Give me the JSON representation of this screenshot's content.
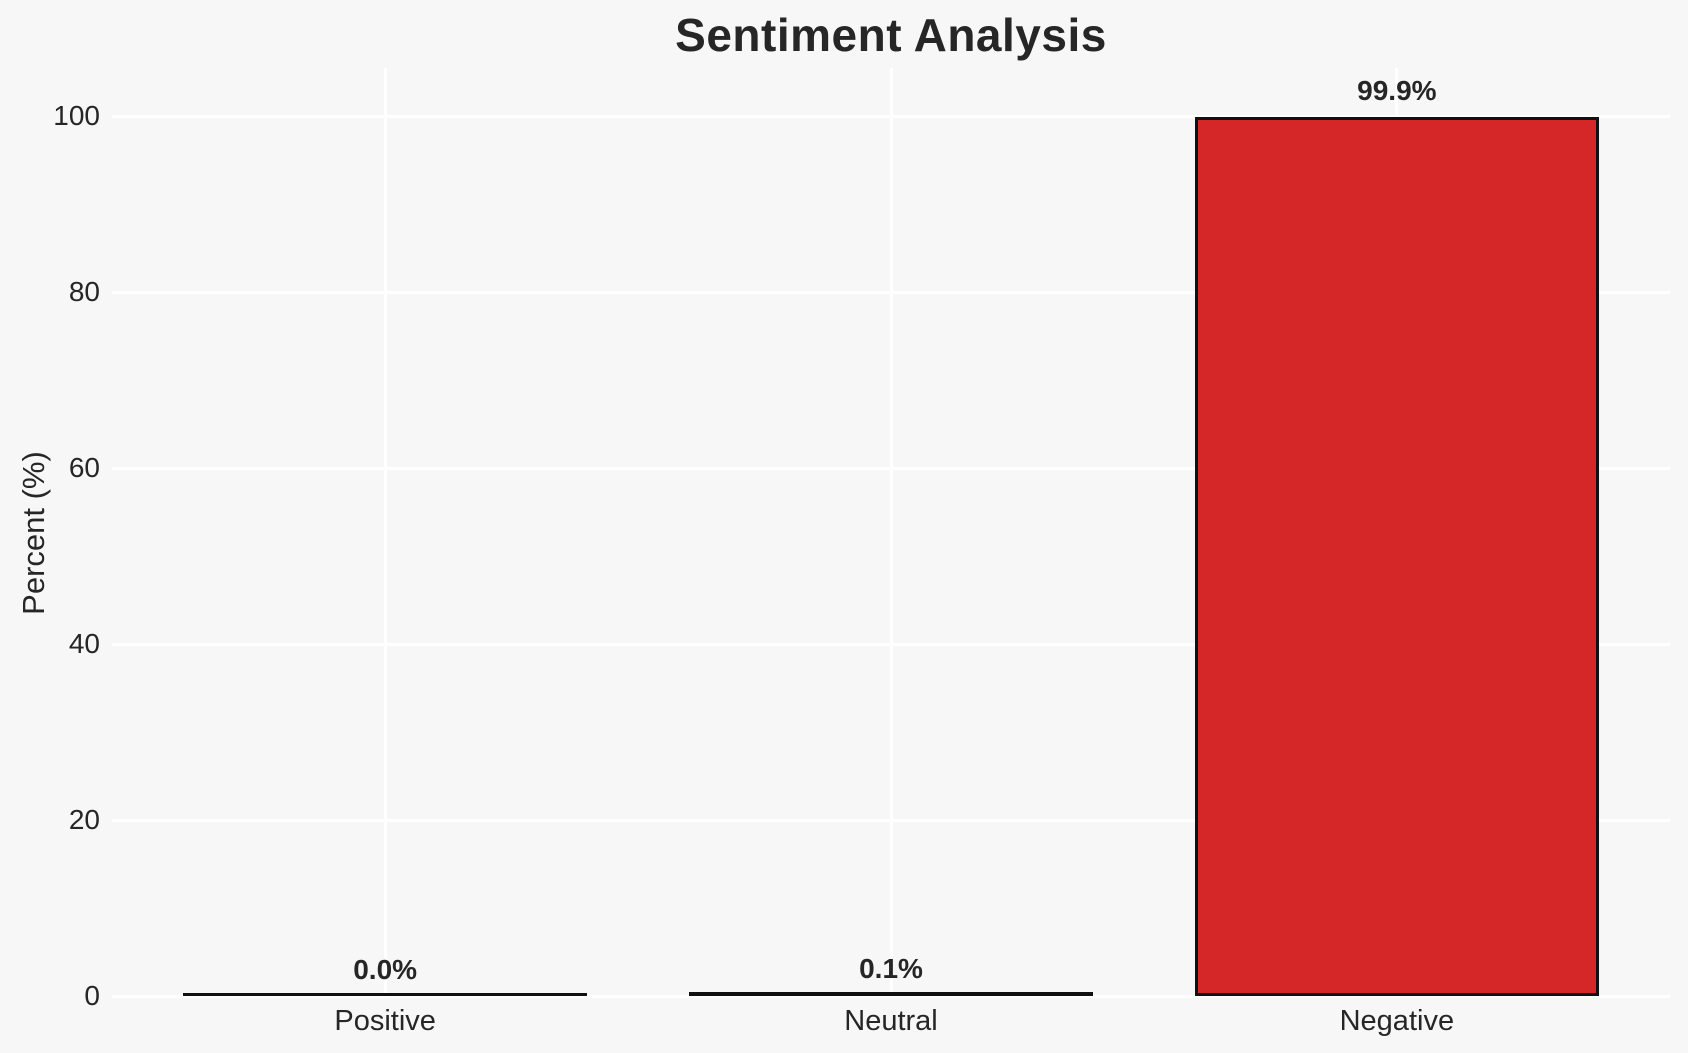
{
  "chart_data": {
    "type": "bar",
    "title": "Sentiment Analysis",
    "xlabel": "",
    "ylabel": "Percent (%)",
    "categories": [
      "Positive",
      "Neutral",
      "Negative"
    ],
    "values": [
      0.0,
      0.1,
      99.9
    ],
    "value_labels": [
      "0.0%",
      "0.1%",
      "99.9%"
    ],
    "yticks": [
      0,
      20,
      40,
      60,
      80,
      100
    ],
    "ylim": [
      0,
      105.5
    ],
    "grid": true,
    "legend": false,
    "colors": {
      "bar_fill": "#d62728",
      "bar_edge": "#111111",
      "background": "#f7f7f7",
      "gridline": "#ffffff",
      "text": "#262626"
    }
  }
}
